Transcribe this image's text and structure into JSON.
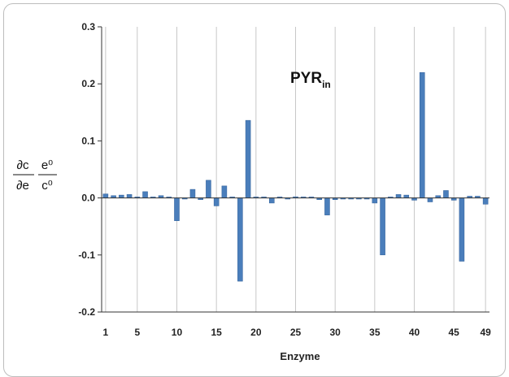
{
  "chart_data": {
    "type": "bar",
    "annotation": {
      "main": "PYR",
      "sub": "in"
    },
    "xlabel": "Enzyme",
    "ylabel": {
      "num_left": "∂c",
      "den_left": "∂e",
      "num_right": "e⁰",
      "den_right": "c⁰"
    },
    "ylim": [
      -0.2,
      0.3
    ],
    "yticks": [
      "0.3",
      "0.2",
      "0.1",
      "0.0",
      "-0.1",
      "-0.2"
    ],
    "ytick_values": [
      0.3,
      0.2,
      0.1,
      0.0,
      -0.1,
      -0.2
    ],
    "xticks": [
      "1",
      "5",
      "10",
      "15",
      "20",
      "25",
      "30",
      "35",
      "40",
      "45",
      "49"
    ],
    "xtick_positions": [
      1,
      5,
      10,
      15,
      20,
      25,
      30,
      35,
      40,
      45,
      49
    ],
    "grid": "vertical",
    "bar_color": "#4a7ebb",
    "categories": [
      1,
      2,
      3,
      4,
      5,
      6,
      7,
      8,
      9,
      10,
      11,
      12,
      13,
      14,
      15,
      16,
      17,
      18,
      19,
      20,
      21,
      22,
      23,
      24,
      25,
      26,
      27,
      28,
      29,
      30,
      31,
      32,
      33,
      34,
      35,
      36,
      37,
      38,
      39,
      40,
      41,
      42,
      43,
      44,
      45,
      46,
      47,
      48,
      49
    ],
    "values": [
      0.007,
      0.004,
      0.005,
      0.006,
      0.0,
      0.011,
      0.0,
      0.004,
      0.0,
      -0.04,
      -0.002,
      0.015,
      -0.003,
      0.031,
      -0.014,
      0.021,
      0.0,
      -0.146,
      0.136,
      0.001,
      0.0,
      -0.009,
      0.0,
      -0.002,
      0.002,
      0.0,
      0.0,
      -0.003,
      -0.03,
      -0.003,
      -0.002,
      -0.002,
      -0.002,
      -0.002,
      -0.009,
      -0.1,
      0.0,
      0.006,
      0.005,
      -0.004,
      0.22,
      -0.007,
      0.004,
      0.013,
      -0.004,
      -0.111,
      0.003,
      0.003,
      -0.011
    ]
  }
}
